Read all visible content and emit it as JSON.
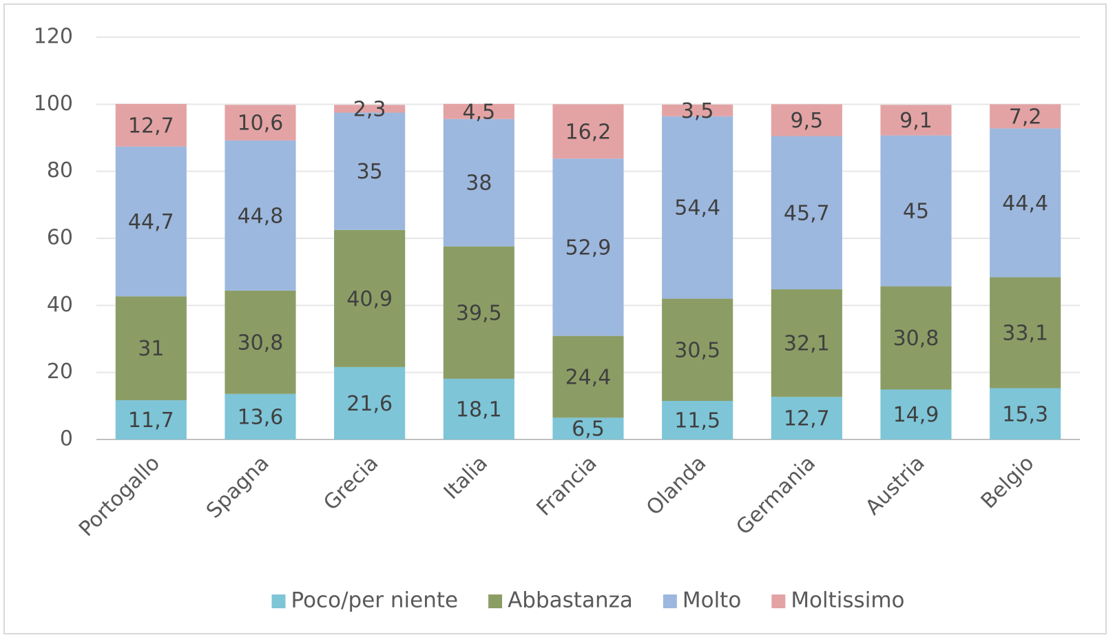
{
  "chart_data": {
    "type": "stacked_bar",
    "categories": [
      "Portogallo",
      "Spagna",
      "Grecia",
      "Italia",
      "Francia",
      "Olanda",
      "Germania",
      "Austria",
      "Belgio"
    ],
    "series": [
      {
        "name": "Poco/per niente",
        "color": "#7ec5d8",
        "values": [
          11.7,
          13.6,
          21.6,
          18.1,
          6.5,
          11.5,
          12.7,
          14.9,
          15.3
        ],
        "value_labels": [
          "11,7",
          "13,6",
          "21,6",
          "18,1",
          "6,5",
          "11,5",
          "12,7",
          "14,9",
          "15,3"
        ]
      },
      {
        "name": "Abbastanza",
        "color": "#8b9d65",
        "values": [
          31,
          30.8,
          40.9,
          39.5,
          24.4,
          30.5,
          32.1,
          30.8,
          33.1
        ],
        "value_labels": [
          "31",
          "30,8",
          "40,9",
          "39,5",
          "24,4",
          "30,5",
          "32,1",
          "30,8",
          "33,1"
        ]
      },
      {
        "name": "Molto",
        "color": "#9db8de",
        "values": [
          44.7,
          44.8,
          35,
          38,
          52.9,
          54.4,
          45.7,
          45,
          44.4
        ],
        "value_labels": [
          "44,7",
          "44,8",
          "35",
          "38",
          "52,9",
          "54,4",
          "45,7",
          "45",
          "44,4"
        ]
      },
      {
        "name": "Moltissimo",
        "color": "#e3a3a4",
        "values": [
          12.7,
          10.6,
          2.3,
          4.5,
          16.2,
          3.5,
          9.5,
          9.1,
          7.2
        ],
        "value_labels": [
          "12,7",
          "10,6",
          "2,3",
          "4,5",
          "16,2",
          "3,5",
          "9,5",
          "9,1",
          "7,2"
        ]
      }
    ],
    "ylim": [
      0,
      120
    ],
    "yticks": [
      0,
      20,
      40,
      60,
      80,
      100,
      120
    ],
    "grid": true,
    "legend": "bottom"
  }
}
